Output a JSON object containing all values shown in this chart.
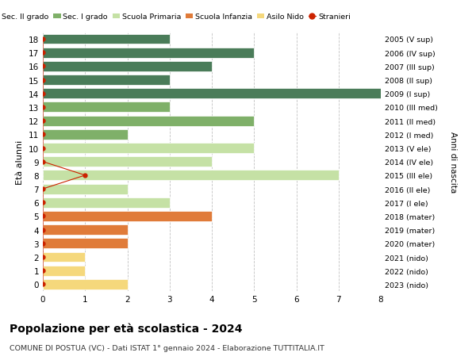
{
  "ages": [
    18,
    17,
    16,
    15,
    14,
    13,
    12,
    11,
    10,
    9,
    8,
    7,
    6,
    5,
    4,
    3,
    2,
    1,
    0
  ],
  "right_labels": [
    "2005 (V sup)",
    "2006 (IV sup)",
    "2007 (III sup)",
    "2008 (II sup)",
    "2009 (I sup)",
    "2010 (III med)",
    "2011 (II med)",
    "2012 (I med)",
    "2013 (V ele)",
    "2014 (IV ele)",
    "2015 (III ele)",
    "2016 (II ele)",
    "2017 (I ele)",
    "2018 (mater)",
    "2019 (mater)",
    "2020 (mater)",
    "2021 (nido)",
    "2022 (nido)",
    "2023 (nido)"
  ],
  "bar_values": [
    3,
    5,
    4,
    3,
    8,
    3,
    5,
    2,
    5,
    4,
    7,
    2,
    3,
    4,
    2,
    2,
    1,
    1,
    2
  ],
  "bar_colors": [
    "#4a7c59",
    "#4a7c59",
    "#4a7c59",
    "#4a7c59",
    "#4a7c59",
    "#7fb069",
    "#7fb069",
    "#7fb069",
    "#c5e1a5",
    "#c5e1a5",
    "#c5e1a5",
    "#c5e1a5",
    "#c5e1a5",
    "#e07b39",
    "#e07b39",
    "#e07b39",
    "#f5d87c",
    "#f5d87c",
    "#f5d87c"
  ],
  "stranieri_ages": [
    18,
    17,
    16,
    15,
    14,
    13,
    12,
    11,
    10,
    9,
    8,
    7,
    6,
    5,
    4,
    3,
    2,
    1,
    0
  ],
  "stranieri_values": [
    0,
    0,
    0,
    0,
    0,
    0,
    0,
    0,
    0,
    0,
    1,
    0,
    0,
    0,
    0,
    0,
    0,
    0,
    0
  ],
  "stranieri_color": "#cc2200",
  "legend_labels": [
    "Sec. II grado",
    "Sec. I grado",
    "Scuola Primaria",
    "Scuola Infanzia",
    "Asilo Nido",
    "Stranieri"
  ],
  "legend_colors": [
    "#4a7c59",
    "#7fb069",
    "#c5e1a5",
    "#e07b39",
    "#f5d87c",
    "#cc2200"
  ],
  "ylabel": "Età alunni",
  "right_ylabel": "Anni di nascita",
  "title": "Popolazione per età scolastica - 2024",
  "subtitle": "COMUNE DI POSTUA (VC) - Dati ISTAT 1° gennaio 2024 - Elaborazione TUTTITALIA.IT",
  "xlim": [
    0,
    8
  ],
  "xticks": [
    0,
    1,
    2,
    3,
    4,
    5,
    6,
    7,
    8
  ],
  "background_color": "#ffffff",
  "grid_color": "#bbbbbb"
}
